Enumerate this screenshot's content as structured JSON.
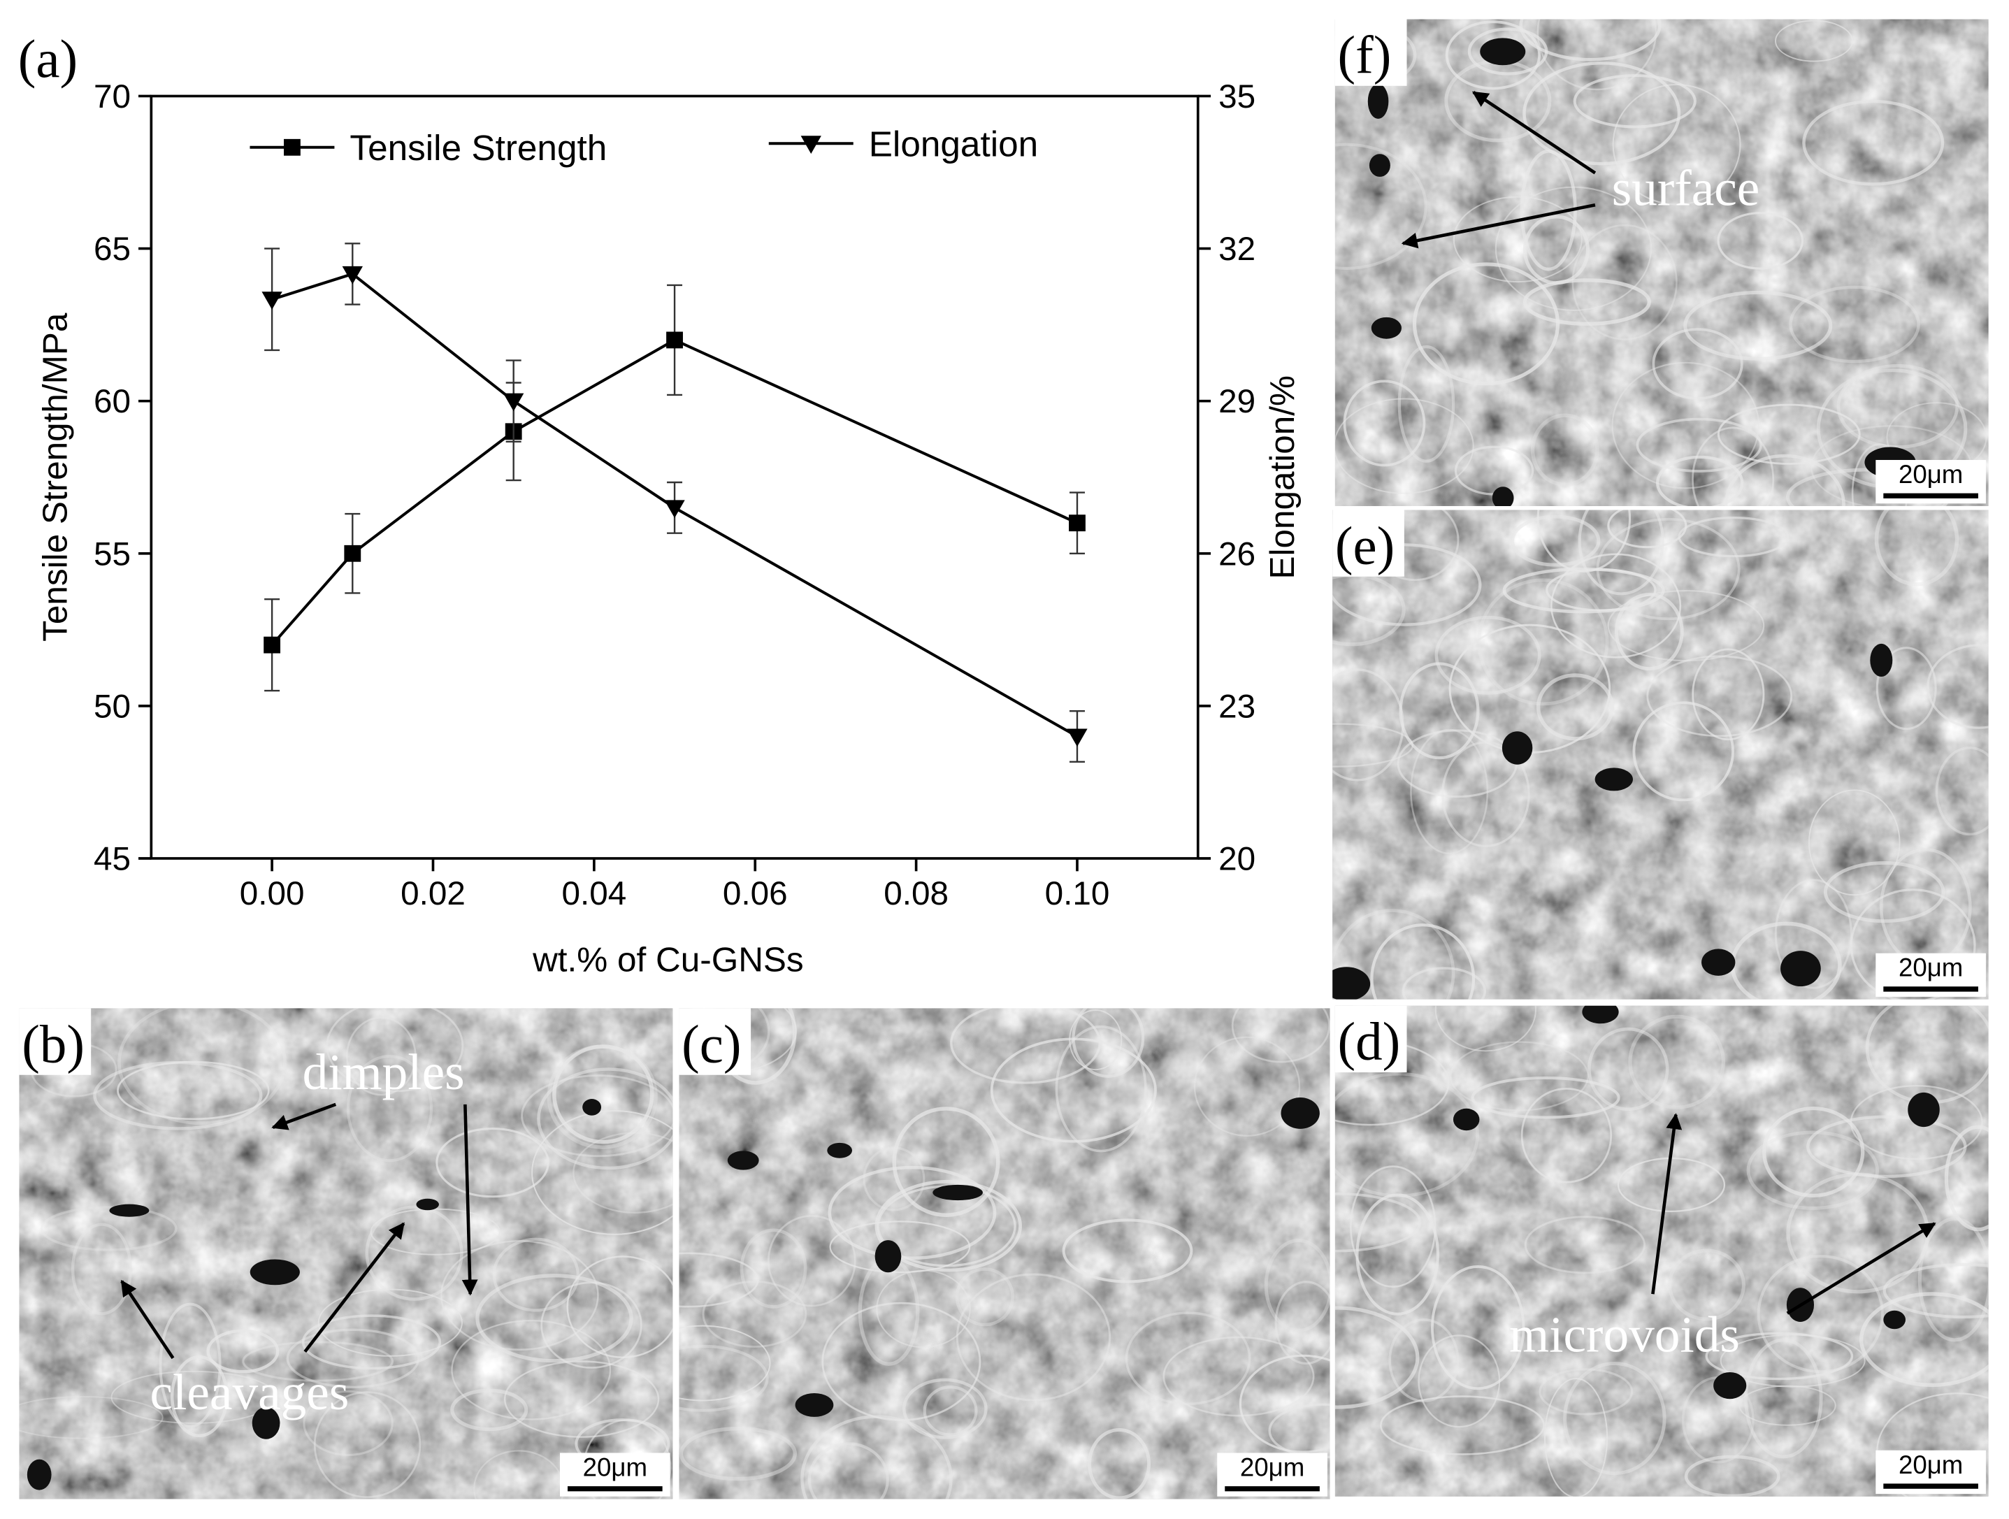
{
  "chart_data": {
    "type": "line",
    "panel_label": "(a)",
    "x_label": "wt.% of  Cu-GNSs",
    "y_label": "Tensile Strength/MPa",
    "y2_label": "Elongation/%",
    "x": [
      0,
      0.01,
      0.03,
      0.05,
      0.1
    ],
    "series": [
      {
        "name": "Tensile Strength",
        "color": "#000000",
        "marker": "square",
        "values": [
          52,
          55,
          59,
          62,
          56
        ],
        "errors": [
          1.5,
          1.3,
          1.6,
          1.8,
          1.0
        ]
      },
      {
        "name": "Elongation",
        "color": "#000000",
        "marker": "triangle-down",
        "axis": "y2",
        "values": [
          31.0,
          31.5,
          29.0,
          26.9,
          22.4
        ],
        "errors": [
          1.0,
          0.6,
          0.8,
          0.5,
          0.5
        ]
      }
    ],
    "xlim": [
      -0.015,
      0.115
    ],
    "xticks": [
      {
        "value": 0,
        "label": "0.00"
      },
      {
        "value": 0.02,
        "label": "0.02"
      },
      {
        "value": 0.04,
        "label": "0.04"
      },
      {
        "value": 0.06,
        "label": "0.06"
      },
      {
        "value": 0.08,
        "label": "0.08"
      },
      {
        "value": 0.1,
        "label": "0.10"
      }
    ],
    "ylim": [
      45,
      70
    ],
    "yticks": [
      45,
      50,
      55,
      60,
      65,
      70
    ],
    "y2lim": [
      20,
      35
    ],
    "y2ticks": [
      20,
      23,
      26,
      29,
      32,
      35
    ]
  },
  "micrographs": [
    {
      "label": "(b)",
      "scale_bar": "20μm",
      "annotations": [
        "dimples",
        "cleavages"
      ]
    },
    {
      "label": "(c)",
      "scale_bar": "20μm",
      "annotations": []
    },
    {
      "label": "(d)",
      "scale_bar": "20μm",
      "annotations": [
        "microvoids"
      ]
    },
    {
      "label": "(e)",
      "scale_bar": "20μm",
      "annotations": []
    },
    {
      "label": "(f)",
      "scale_bar": "20μm",
      "annotations": [
        "surface"
      ]
    }
  ]
}
